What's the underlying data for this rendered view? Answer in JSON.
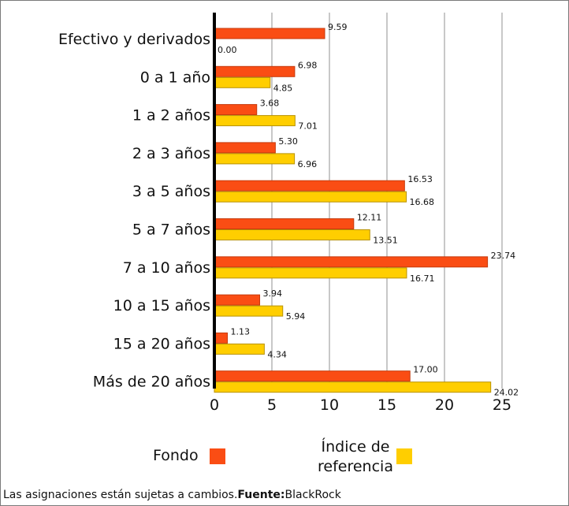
{
  "chart_data": {
    "type": "bar",
    "orientation": "horizontal",
    "categories": [
      "Efectivo y derivados",
      "0 a 1 año",
      "1 a 2 años",
      "2 a 3 años",
      "3 a 5 años",
      "5 a 7 años",
      "7 a 10 años",
      "10 a 15 años",
      "15 a 20 años",
      "Más de 20 años"
    ],
    "series": [
      {
        "name": "Fondo",
        "color": "#fa4d14",
        "values": [
          9.59,
          6.98,
          3.68,
          5.3,
          16.53,
          12.11,
          23.74,
          3.94,
          1.13,
          17.0
        ],
        "labels": [
          "9.59",
          "6.98",
          "3.68",
          "5.30",
          "16.53",
          "12.11",
          "23.74",
          "3.94",
          "1.13",
          "17.00"
        ]
      },
      {
        "name": "Índice de referencia",
        "color": "#ffce00",
        "values": [
          0.0,
          4.85,
          7.01,
          6.96,
          16.68,
          13.51,
          16.71,
          5.94,
          4.34,
          24.02
        ],
        "labels": [
          "0.00",
          "4.85",
          "7.01",
          "6.96",
          "16.68",
          "13.51",
          "16.71",
          "5.94",
          "4.34",
          "24.02"
        ]
      }
    ],
    "xlim": [
      0,
      25
    ],
    "ticks": [
      0,
      5,
      10,
      15,
      20,
      25
    ],
    "tick_labels": [
      "0",
      "5",
      "10",
      "15",
      "20",
      "25"
    ],
    "grid": true,
    "legend_position": "bottom"
  },
  "legend": {
    "fondo_label": "Fondo",
    "indice_label_line1": "Índice de",
    "indice_label_line2": "referencia"
  },
  "footer": {
    "text": "Las asignaciones están sujetas a cambios.",
    "source_label": "Fuente:",
    "source_value": "BlackRock"
  }
}
